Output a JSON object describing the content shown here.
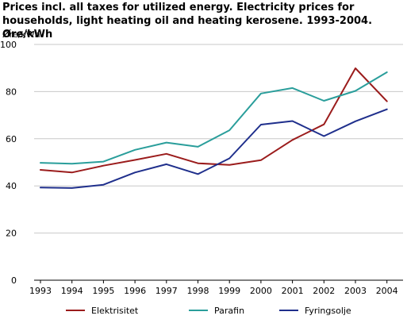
{
  "chart_data": {
    "type": "line",
    "title": "Prices incl. all taxes for utilized energy. Electricity  prices for households, light heating oil and heating kerosene. 1993-2004. Øre/kWh",
    "xlabel": "",
    "ylabel": "Øre/kWh",
    "x": [
      "1993",
      "1994",
      "1995",
      "1996",
      "1997",
      "1998",
      "1999",
      "2000",
      "2001",
      "2002",
      "2003",
      "2004"
    ],
    "ylim": [
      0,
      100
    ],
    "yticks": [
      0,
      20,
      40,
      60,
      80,
      100
    ],
    "grid": "horizontal",
    "legend": "bottom",
    "series": [
      {
        "name": "Elektrisitet",
        "color": "#9b1c1c",
        "values": [
          46.8,
          45.7,
          48.6,
          51.0,
          53.6,
          49.6,
          48.9,
          50.9,
          59.5,
          66.1,
          89.9,
          75.9
        ]
      },
      {
        "name": "Parafin",
        "color": "#2a9e9b",
        "values": [
          49.8,
          49.4,
          50.3,
          55.3,
          58.4,
          56.6,
          63.6,
          79.2,
          81.5,
          76.1,
          80.3,
          88.2
        ]
      },
      {
        "name": "Fyringsolje",
        "color": "#1f2f8c",
        "values": [
          39.3,
          39.1,
          40.5,
          45.7,
          49.2,
          45.0,
          51.7,
          66.0,
          67.5,
          61.1,
          67.4,
          72.5
        ]
      }
    ]
  }
}
